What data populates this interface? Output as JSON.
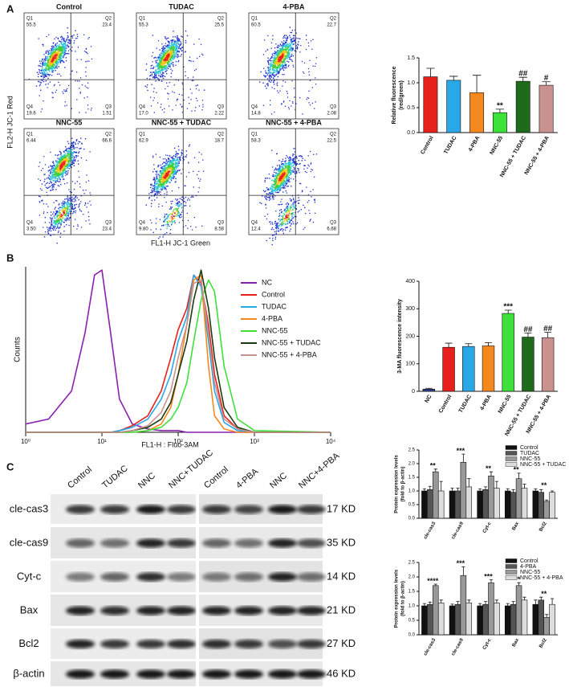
{
  "panel_labels": [
    "A",
    "B",
    "C"
  ],
  "flow_plots": {
    "y_label": "FL2-H JC-1 Red",
    "x_label": "FL1-H JC-1 Green",
    "panels": [
      {
        "title": "Control",
        "quadrants": [
          {
            "name": "Q1",
            "value": "55.5"
          },
          {
            "name": "Q2",
            "value": "23.4"
          },
          {
            "name": "Q4",
            "value": "19.6"
          },
          {
            "name": "Q3",
            "value": "1.51"
          }
        ]
      },
      {
        "title": "TUDAC",
        "quadrants": [
          {
            "name": "Q1",
            "value": "55.3"
          },
          {
            "name": "Q2",
            "value": "25.5"
          },
          {
            "name": "Q4",
            "value": "17.0"
          },
          {
            "name": "Q3",
            "value": "2.22"
          }
        ]
      },
      {
        "title": "4-PBA",
        "quadrants": [
          {
            "name": "Q1",
            "value": "60.5"
          },
          {
            "name": "Q2",
            "value": "22.7"
          },
          {
            "name": "Q4",
            "value": "14.8"
          },
          {
            "name": "Q3",
            "value": "2.08"
          }
        ]
      },
      {
        "title": "NNC-55",
        "quadrants": [
          {
            "name": "Q1",
            "value": "6.44"
          },
          {
            "name": "Q2",
            "value": "66.6"
          },
          {
            "name": "Q4",
            "value": "3.50"
          },
          {
            "name": "Q3",
            "value": "23.4"
          }
        ]
      },
      {
        "title": "NNC-55 + TUDAC",
        "quadrants": [
          {
            "name": "Q1",
            "value": "62.9"
          },
          {
            "name": "Q2",
            "value": "18.7"
          },
          {
            "name": "Q4",
            "value": "9.80"
          },
          {
            "name": "Q3",
            "value": "8.58"
          }
        ]
      },
      {
        "title": "NNC-55 + 4-PBA",
        "quadrants": [
          {
            "name": "Q1",
            "value": "58.3"
          },
          {
            "name": "Q2",
            "value": "22.5"
          },
          {
            "name": "Q4",
            "value": "12.4"
          },
          {
            "name": "Q3",
            "value": "6.68"
          }
        ]
      }
    ]
  },
  "chart_data": [
    {
      "type": "bar",
      "ylabel": [
        "Relative fluorescence",
        "(red/green)"
      ],
      "categories": [
        "Control",
        "TUDAC",
        "4-PBA",
        "NNC-55",
        "NNC-55 + TUDAC",
        "NNC-55 + 4-PBA"
      ],
      "values": [
        1.12,
        1.05,
        0.8,
        0.4,
        1.03,
        0.95
      ],
      "errors": [
        0.17,
        0.08,
        0.35,
        0.07,
        0.08,
        0.07
      ],
      "colors": [
        "#e8201c",
        "#29a8e8",
        "#f5891f",
        "#3ee03a",
        "#1e6b1c",
        "#c9928e"
      ],
      "annotations": [
        null,
        null,
        null,
        "**",
        "##",
        "#"
      ],
      "ylim": [
        0,
        1.5
      ],
      "yticks": [
        {
          "value": 0,
          "label": "0.0"
        },
        {
          "value": 0.5,
          "label": "0.5"
        },
        {
          "value": 1,
          "label": "1.0"
        },
        {
          "value": 1.5,
          "label": "1.5"
        }
      ]
    },
    {
      "type": "line",
      "xlabel": "FL1-H : Fluo-3AM",
      "ylabel": "Counts",
      "xscale": "log",
      "legend": "upper right",
      "x": [
        1,
        2,
        4,
        6,
        8,
        10,
        13,
        17,
        25,
        40,
        60,
        80,
        100,
        130,
        160,
        200,
        250,
        300,
        400,
        600,
        1000,
        10000
      ],
      "xlim": [
        1,
        10000
      ],
      "xticks": [
        {
          "value": 1,
          "label": "10⁰"
        },
        {
          "value": 10,
          "label": "10¹"
        },
        {
          "value": 100,
          "label": "10²"
        },
        {
          "value": 1000,
          "label": "10³"
        },
        {
          "value": 10000,
          "label": "10⁴"
        }
      ],
      "ylim": [
        0,
        100
      ],
      "series": [
        {
          "name": "NC",
          "color": "#8a1fb0",
          "values": [
            5,
            8,
            25,
            60,
            95,
            98,
            60,
            20,
            5,
            2,
            1,
            1,
            1,
            0,
            0,
            0,
            0,
            0,
            0,
            0,
            0,
            0
          ]
        },
        {
          "name": "Control",
          "color": "#e8201c",
          "values": [
            0,
            0,
            0,
            0,
            0,
            0,
            0,
            1,
            4,
            10,
            25,
            45,
            62,
            75,
            95,
            90,
            65,
            35,
            10,
            2,
            0,
            0
          ]
        },
        {
          "name": "TUDAC",
          "color": "#29a8e8",
          "values": [
            0,
            0,
            0,
            0,
            0,
            0,
            0,
            1,
            3,
            8,
            20,
            35,
            55,
            70,
            95,
            88,
            55,
            25,
            6,
            1,
            0,
            0
          ]
        },
        {
          "name": "4-PBA",
          "color": "#f5891f",
          "values": [
            0,
            0,
            0,
            0,
            0,
            0,
            0,
            0,
            0,
            1,
            5,
            15,
            35,
            65,
            92,
            95,
            40,
            10,
            2,
            0,
            0,
            0
          ]
        },
        {
          "name": "NNC-55",
          "color": "#3ee03a",
          "values": [
            0,
            0,
            0,
            0,
            0,
            0,
            0,
            0,
            0,
            1,
            3,
            8,
            15,
            30,
            55,
            80,
            92,
            85,
            40,
            8,
            1,
            0
          ]
        },
        {
          "name": "NNC-55 + TUDAC",
          "color": "#1b3a12",
          "values": [
            0,
            0,
            0,
            0,
            0,
            0,
            0,
            0,
            1,
            3,
            8,
            18,
            35,
            55,
            80,
            98,
            75,
            45,
            15,
            3,
            0,
            0
          ]
        },
        {
          "name": "NNC-55 + 4-PBA",
          "color": "#c9928e",
          "values": [
            0,
            0,
            0,
            0,
            0,
            0,
            0,
            0,
            1,
            4,
            12,
            25,
            45,
            65,
            90,
            92,
            60,
            30,
            8,
            2,
            0,
            0
          ]
        }
      ]
    },
    {
      "type": "bar",
      "ylabel": [
        "3-MA  fluorescence intensity"
      ],
      "categories": [
        "NC",
        "Control",
        "TUDAC",
        "4-PBA",
        "NNC-55",
        "NNC-55 + TUDAC",
        "NNC-55 + 4-PBA"
      ],
      "values": [
        8,
        160,
        163,
        165,
        283,
        197,
        195
      ],
      "errors": [
        3,
        15,
        10,
        12,
        12,
        15,
        20
      ],
      "colors": [
        "#2c3e8c",
        "#e8201c",
        "#29a8e8",
        "#f5891f",
        "#3ee03a",
        "#1e6b1c",
        "#c9928e"
      ],
      "annotations": [
        null,
        null,
        null,
        null,
        "***",
        "##",
        "##"
      ],
      "ylim": [
        0,
        400
      ],
      "yticks": [
        0,
        100,
        200,
        300,
        400
      ]
    },
    {
      "type": "grouped-bar",
      "ylabel": [
        "Protein expression levels",
        "(fold to β-actin)"
      ],
      "categories": [
        "cle-cas3",
        "cle-cas9",
        "Cyt-c",
        "Bax",
        "Bcl2"
      ],
      "series": [
        {
          "name": "Control",
          "color": "#111111",
          "values": [
            1,
            1,
            1,
            1,
            1
          ],
          "errors": [
            0.08,
            0.1,
            0.08,
            0.08,
            0.08
          ]
        },
        {
          "name": "TUDAC",
          "color": "#555555",
          "values": [
            1.05,
            1.0,
            1.05,
            0.95,
            0.95
          ],
          "errors": [
            0.12,
            0.1,
            0.1,
            0.1,
            0.1
          ]
        },
        {
          "name": "NNC-55",
          "color": "#999999",
          "values": [
            1.7,
            2.05,
            1.55,
            1.45,
            0.62
          ],
          "errors": [
            0.1,
            0.3,
            0.15,
            0.2,
            0.05
          ]
        },
        {
          "name": "NNC-55 + TUDAC",
          "color": "#dddddd",
          "values": [
            1.0,
            1.15,
            1.1,
            1.1,
            0.95
          ],
          "errors": [
            0.35,
            0.3,
            0.25,
            0.15,
            0.05
          ]
        }
      ],
      "annotations": [
        "**",
        "***",
        "**",
        "**",
        "**"
      ],
      "ylim": [
        0,
        2.5
      ],
      "yticks": [
        {
          "value": 0,
          "label": "0.0"
        },
        {
          "value": 0.5,
          "label": "0.5"
        },
        {
          "value": 1,
          "label": "1.0"
        },
        {
          "value": 1.5,
          "label": "1.5"
        },
        {
          "value": 2,
          "label": "2.0"
        },
        {
          "value": 2.5,
          "label": "2.5"
        }
      ]
    },
    {
      "type": "grouped-bar",
      "ylabel": [
        "Protein expression levels",
        "(fold to β-actin)"
      ],
      "categories": [
        "cle-cas3",
        "cle-cas9",
        "Cyt-c",
        "Bax",
        "Bcl2"
      ],
      "series": [
        {
          "name": "Control",
          "color": "#111111",
          "values": [
            1,
            1,
            1,
            1,
            1.05
          ],
          "errors": [
            0.08,
            0.06,
            0.08,
            0.08,
            0.15
          ]
        },
        {
          "name": "4-PBA",
          "color": "#555555",
          "values": [
            1.05,
            1.05,
            1.05,
            1.05,
            1.2
          ],
          "errors": [
            0.08,
            0.1,
            0.1,
            0.1,
            0.1
          ]
        },
        {
          "name": "NNC-55",
          "color": "#999999",
          "values": [
            1.7,
            2.05,
            1.8,
            1.7,
            0.6
          ],
          "errors": [
            0.05,
            0.3,
            0.1,
            0.1,
            0.1
          ]
        },
        {
          "name": "NNC-55 + 4-PBA",
          "color": "#dddddd",
          "values": [
            1.1,
            1.1,
            1.1,
            1.2,
            1.05
          ],
          "errors": [
            0.1,
            0.1,
            0.1,
            0.1,
            0.2
          ]
        }
      ],
      "annotations": [
        "****",
        "***",
        "***",
        "***",
        "**"
      ],
      "ylim": [
        0,
        2.5
      ],
      "yticks": [
        {
          "value": 0,
          "label": "0.0"
        },
        {
          "value": 0.5,
          "label": "0.5"
        },
        {
          "value": 1,
          "label": "1.0"
        },
        {
          "value": 1.5,
          "label": "1.5"
        },
        {
          "value": 2,
          "label": "2.0"
        },
        {
          "value": 2.5,
          "label": "2.5"
        }
      ]
    }
  ],
  "blot": {
    "columns": [
      "Control",
      "TUDAC",
      "NNC",
      "NNC+TUDAC",
      "Control",
      "4-PBA",
      "NNC",
      "NNC+4-PBA"
    ],
    "rows": [
      {
        "label": "cle-cas3",
        "size": "17 KD"
      },
      {
        "label": "cle-cas9",
        "size": "35 KD"
      },
      {
        "label": "Cyt-c",
        "size": "14 KD"
      },
      {
        "label": "Bax",
        "size": "21 KD"
      },
      {
        "label": "Bcl2",
        "size": "27 KD"
      },
      {
        "label": "β-actin",
        "size": "46 KD"
      }
    ]
  }
}
